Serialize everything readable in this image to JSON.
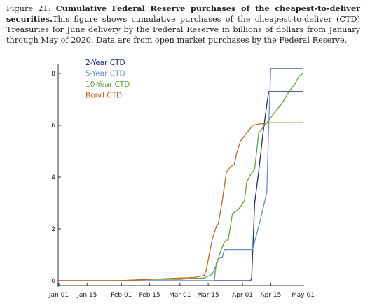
{
  "figure": {
    "label": "Figure 21:",
    "bold_title": "Cumulative Federal Reserve purchases of the cheapest-to-deliver securities.",
    "caption": "This figure shows cumulative purchases of the cheapest-to-deliver (CTD) Treasuries for June delivery by the Federal Reserve in billions of dollars from January through May of 2020. Data are from open market purchases by the Federal Reserve."
  },
  "chart_data": {
    "type": "line",
    "title": "",
    "xlabel": "",
    "ylabel": "",
    "x_tick_labels": [
      "Jan 01",
      "Jan 15",
      "Feb 01",
      "Feb 15",
      "Mar 01",
      "Mar 15",
      "Apr 01",
      "Apr 15",
      "May 01"
    ],
    "x_tick_days": [
      0,
      14,
      31,
      45,
      60,
      74,
      91,
      105,
      121
    ],
    "y_ticks": [
      0,
      2,
      4,
      6,
      8
    ],
    "ylim": [
      -0.3,
      8.4
    ],
    "xlim": [
      0,
      122
    ],
    "grid": false,
    "legend_placement": "top-left",
    "series": [
      {
        "name": "2-Year CTD",
        "color": "#1f2d6b",
        "points": [
          [
            0,
            0
          ],
          [
            95,
            0
          ],
          [
            95.5,
            0.1
          ],
          [
            97,
            3.0
          ],
          [
            99,
            4.2
          ],
          [
            101,
            5.6
          ],
          [
            103,
            6.8
          ],
          [
            104,
            7.3
          ],
          [
            121,
            7.3
          ]
        ]
      },
      {
        "name": "5-Year CTD",
        "color": "#6a8fd0",
        "points": [
          [
            0,
            0
          ],
          [
            77,
            0
          ],
          [
            78,
            0.7
          ],
          [
            80,
            0.9
          ],
          [
            81,
            0.9
          ],
          [
            82,
            1.2
          ],
          [
            95,
            1.2
          ],
          [
            96,
            1.2
          ],
          [
            100,
            2.4
          ],
          [
            103,
            3.4
          ],
          [
            104,
            6.0
          ],
          [
            105,
            8.2
          ],
          [
            121,
            8.2
          ]
        ]
      },
      {
        "name": "10-Year CTD",
        "color": "#5fa83a",
        "points": [
          [
            0,
            0
          ],
          [
            30,
            0
          ],
          [
            45,
            0.05
          ],
          [
            60,
            0.05
          ],
          [
            66,
            0.08
          ],
          [
            72,
            0.1
          ],
          [
            76,
            0.25
          ],
          [
            78,
            0.6
          ],
          [
            80,
            1.1
          ],
          [
            82,
            1.5
          ],
          [
            84,
            1.6
          ],
          [
            86,
            2.6
          ],
          [
            88,
            2.7
          ],
          [
            90,
            2.85
          ],
          [
            92,
            3.1
          ],
          [
            93,
            3.8
          ],
          [
            95,
            4.1
          ],
          [
            97,
            4.3
          ],
          [
            99,
            5.7
          ],
          [
            101,
            5.9
          ],
          [
            103,
            6.1
          ],
          [
            105,
            6.3
          ],
          [
            108,
            6.6
          ],
          [
            111,
            6.9
          ],
          [
            114,
            7.3
          ],
          [
            117,
            7.6
          ],
          [
            119,
            7.9
          ],
          [
            121,
            8.0
          ]
        ]
      },
      {
        "name": "Bond CTD",
        "color": "#c8621e",
        "points": [
          [
            0,
            0
          ],
          [
            30,
            0
          ],
          [
            45,
            0.05
          ],
          [
            60,
            0.1
          ],
          [
            67,
            0.12
          ],
          [
            72,
            0.2
          ],
          [
            73,
            0.4
          ],
          [
            74,
            0.8
          ],
          [
            76,
            1.6
          ],
          [
            78,
            2.1
          ],
          [
            79,
            2.2
          ],
          [
            81,
            3.1
          ],
          [
            83,
            4.2
          ],
          [
            85,
            4.4
          ],
          [
            87,
            4.5
          ],
          [
            88,
            4.9
          ],
          [
            90,
            5.4
          ],
          [
            92,
            5.6
          ],
          [
            94,
            5.8
          ],
          [
            96,
            6.0
          ],
          [
            99,
            6.05
          ],
          [
            104,
            6.1
          ],
          [
            121,
            6.1
          ]
        ]
      }
    ]
  }
}
